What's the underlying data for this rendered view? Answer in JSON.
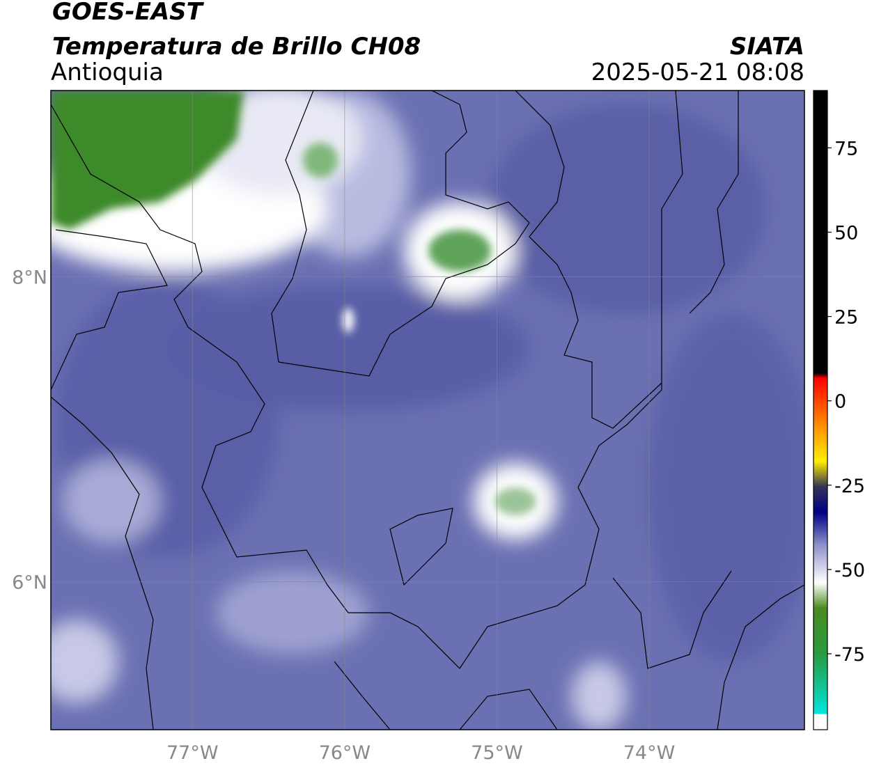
{
  "header": {
    "title": "GOES-EAST",
    "subtitle": "Temperatura de Brillo CH08",
    "region": "Antioquia",
    "source": "SIATA",
    "datetime": "2025-05-21 08:08"
  },
  "map": {
    "xlim": [
      -77.93,
      -72.98
    ],
    "ylim": [
      5.03,
      9.22
    ],
    "xticks": [
      {
        "value": -77,
        "label": "77°W"
      },
      {
        "value": -76,
        "label": "76°W"
      },
      {
        "value": -75,
        "label": "75°W"
      },
      {
        "value": -74,
        "label": "74°W"
      }
    ],
    "yticks": [
      {
        "value": 6,
        "label": "6°N"
      },
      {
        "value": 8,
        "label": "8°N"
      }
    ],
    "grid": true
  },
  "colorbar": {
    "lim": [
      -97.5,
      92
    ],
    "ticks": [
      -75,
      -50,
      -25,
      0,
      25,
      50,
      75
    ]
  }
}
